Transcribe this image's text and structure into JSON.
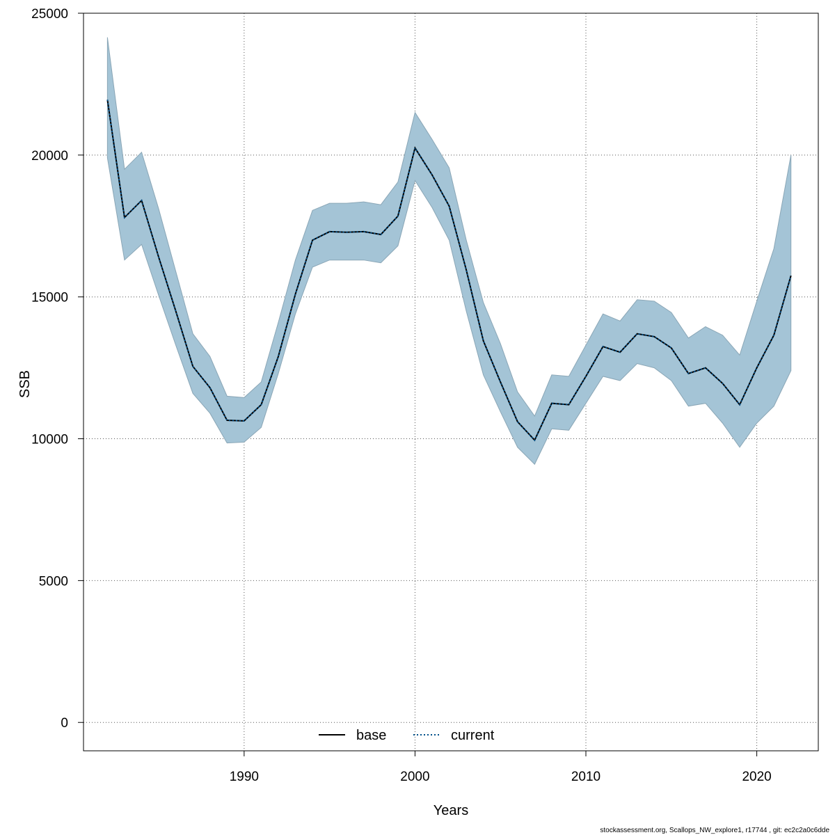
{
  "chart_data": {
    "type": "line",
    "xlabel": "Years",
    "ylabel": "SSB",
    "xlim": [
      1980.6,
      2023.6
    ],
    "ylim": [
      -1000,
      25000
    ],
    "x_ticks": [
      1990,
      2000,
      2010,
      2020
    ],
    "y_ticks": [
      0,
      5000,
      10000,
      15000,
      20000,
      25000
    ],
    "grid": true,
    "legend_position": "bottom",
    "legend": [
      {
        "label": "base",
        "style": "solid",
        "color": "#000000"
      },
      {
        "label": "current",
        "style": "dotted",
        "color": "#00508a"
      }
    ],
    "band_color": "#a4c4d6",
    "x": [
      1982,
      1983,
      1984,
      1985,
      1986,
      1987,
      1988,
      1989,
      1990,
      1991,
      1992,
      1993,
      1994,
      1995,
      1996,
      1997,
      1998,
      1999,
      2000,
      2001,
      2002,
      2003,
      2004,
      2005,
      2006,
      2007,
      2008,
      2009,
      2010,
      2011,
      2012,
      2013,
      2014,
      2015,
      2016,
      2017,
      2018,
      2019,
      2020,
      2021,
      2022
    ],
    "series": [
      {
        "name": "current",
        "values": [
          21950,
          17800,
          18400,
          16400,
          14500,
          12550,
          11800,
          10650,
          10630,
          11200,
          12900,
          15100,
          17000,
          17300,
          17280,
          17300,
          17200,
          17850,
          20250,
          19300,
          18200,
          15950,
          13450,
          12000,
          10600,
          9950,
          11250,
          11200,
          12200,
          13250,
          13050,
          13700,
          13600,
          13200,
          12300,
          12500,
          11950,
          11200,
          12500,
          13650,
          15750
        ],
        "lower": [
          19900,
          16300,
          16850,
          15050,
          13300,
          11600,
          10900,
          9850,
          9880,
          10400,
          12300,
          14400,
          16050,
          16300,
          16300,
          16300,
          16200,
          16800,
          19100,
          18150,
          17000,
          14500,
          12250,
          10950,
          9700,
          9100,
          10350,
          10300,
          11250,
          12200,
          12050,
          12650,
          12500,
          12050,
          11150,
          11250,
          10550,
          9700,
          10550,
          11150,
          12400
        ],
        "upper": [
          24150,
          19500,
          20100,
          18100,
          15900,
          13700,
          12900,
          11500,
          11450,
          12000,
          14100,
          16300,
          18050,
          18300,
          18300,
          18350,
          18250,
          19050,
          21500,
          20550,
          19550,
          17000,
          14800,
          13350,
          11650,
          10800,
          12250,
          12200,
          13300,
          14400,
          14150,
          14900,
          14850,
          14450,
          13550,
          13950,
          13650,
          12950,
          14850,
          16700,
          20000
        ]
      }
    ],
    "footer": "stockassessment.org, Scallops_NW_explore1, r17744 , git: ec2c2a0c6dde"
  }
}
